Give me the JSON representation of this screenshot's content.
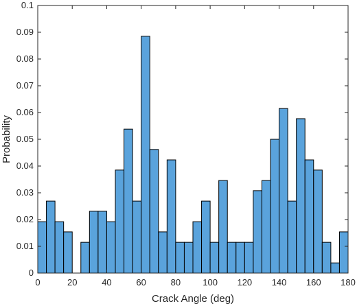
{
  "chart_data": {
    "type": "bar",
    "title": "",
    "xlabel": "Crack Angle (deg)",
    "ylabel": "Probability",
    "xlim": [
      0,
      180
    ],
    "ylim": [
      0,
      0.1
    ],
    "bin_width": 5,
    "bin_starts": [
      0,
      5,
      10,
      15,
      20,
      25,
      30,
      35,
      40,
      45,
      50,
      55,
      60,
      65,
      70,
      75,
      80,
      85,
      90,
      95,
      100,
      105,
      110,
      115,
      120,
      125,
      130,
      135,
      140,
      145,
      150,
      155,
      160,
      165,
      170,
      175
    ],
    "values": [
      0.0192,
      0.0269,
      0.0192,
      0.0154,
      0,
      0.0115,
      0.0231,
      0.0231,
      0.0192,
      0.0385,
      0.0538,
      0.0269,
      0.0885,
      0.0462,
      0.0154,
      0.0423,
      0.0115,
      0.0115,
      0.0192,
      0.0269,
      0.0115,
      0.0346,
      0.0115,
      0.0115,
      0.0115,
      0.0308,
      0.0346,
      0.05,
      0.0615,
      0.0269,
      0.0577,
      0.0423,
      0.0385,
      0.0115,
      0.0038,
      0.0154
    ],
    "x_ticks": [
      "0",
      "20",
      "40",
      "60",
      "80",
      "100",
      "120",
      "140",
      "160",
      "180"
    ],
    "y_ticks": [
      "0",
      "0.01",
      "0.02",
      "0.03",
      "0.04",
      "0.05",
      "0.06",
      "0.07",
      "0.08",
      "0.09",
      "0.1"
    ],
    "grid": false,
    "colors": {
      "bar_fill": "#5aa3dc",
      "bar_edge": "#000000",
      "axis": "#262626"
    }
  }
}
